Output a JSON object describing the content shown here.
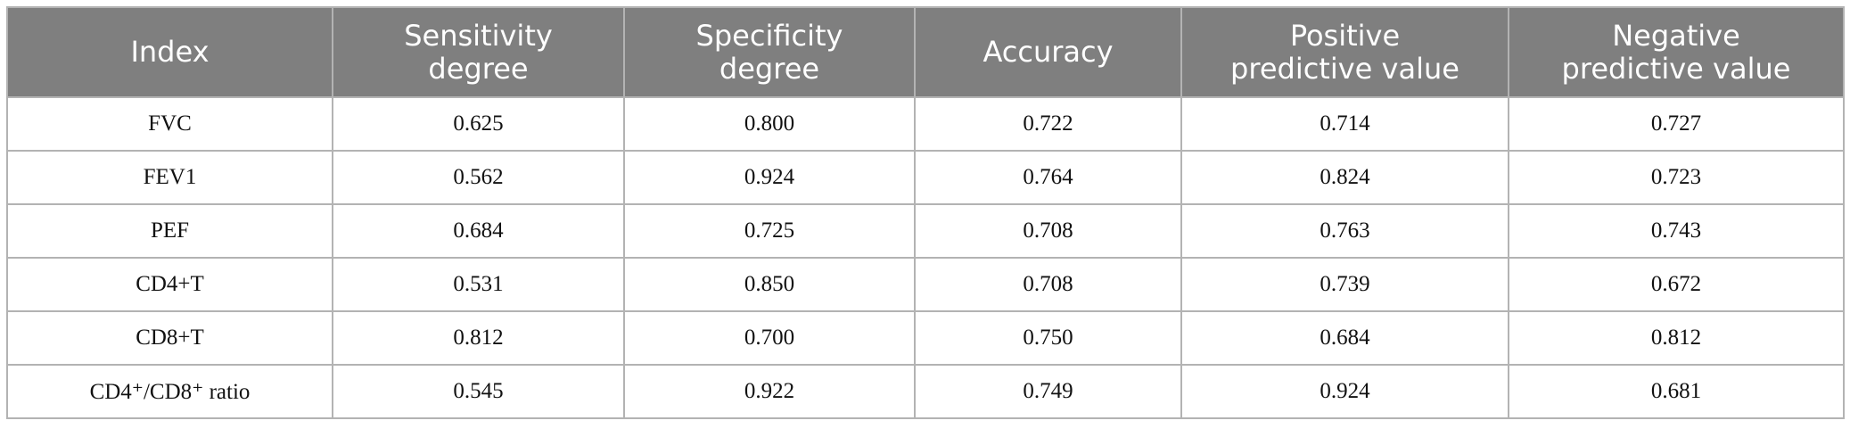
{
  "table": {
    "header": [
      [
        "Index"
      ],
      [
        "Sensitivity",
        "degree"
      ],
      [
        "Specificity",
        "degree"
      ],
      [
        "Accuracy"
      ],
      [
        "Positive",
        "predictive value"
      ],
      [
        "Negative",
        "predictive value"
      ]
    ],
    "rows": [
      [
        "FVC",
        "0.625",
        "0.800",
        "0.722",
        "0.714",
        "0.727"
      ],
      [
        "FEV1",
        "0.562",
        "0.924",
        "0.764",
        "0.824",
        "0.723"
      ],
      [
        "PEF",
        "0.684",
        "0.725",
        "0.708",
        "0.763",
        "0.743"
      ],
      [
        "CD4+T",
        "0.531",
        "0.850",
        "0.708",
        "0.739",
        "0.672"
      ],
      [
        "CD8+T",
        "0.812",
        "0.700",
        "0.750",
        "0.684",
        "0.812"
      ],
      [
        "CD4⁺/CD8⁺ ratio",
        "0.545",
        "0.922",
        "0.749",
        "0.924",
        "0.681"
      ]
    ]
  }
}
